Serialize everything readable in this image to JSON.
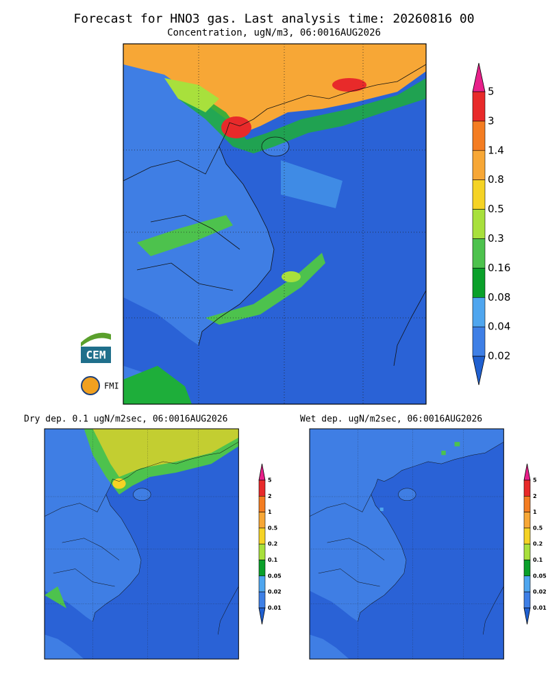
{
  "header": {
    "title": "Forecast for HNO3 gas. Last analysis time: 20260816 00",
    "subtitle": "Concentration, ugN/m3, 06:0016AUG2026"
  },
  "main_colorbar": {
    "labels": [
      "5",
      "3",
      "1.4",
      "0.8",
      "0.5",
      "0.3",
      "0.16",
      "0.08",
      "0.04",
      "0.02"
    ]
  },
  "logos": {
    "cem": "CEM",
    "fmi": "FMI"
  },
  "panels": [
    {
      "title": "Dry dep. 0.1 ugN/m2sec, 06:0016AUG2026",
      "colorbar": [
        "5",
        "2",
        "1",
        "0.5",
        "0.2",
        "0.1",
        "0.05",
        "0.02",
        "0.01"
      ]
    },
    {
      "title": "Wet dep. ugN/m2sec, 06:0016AUG2026",
      "colorbar": [
        "5",
        "2",
        "1",
        "0.5",
        "0.2",
        "0.1",
        "0.05",
        "0.02",
        "0.01"
      ]
    }
  ]
}
